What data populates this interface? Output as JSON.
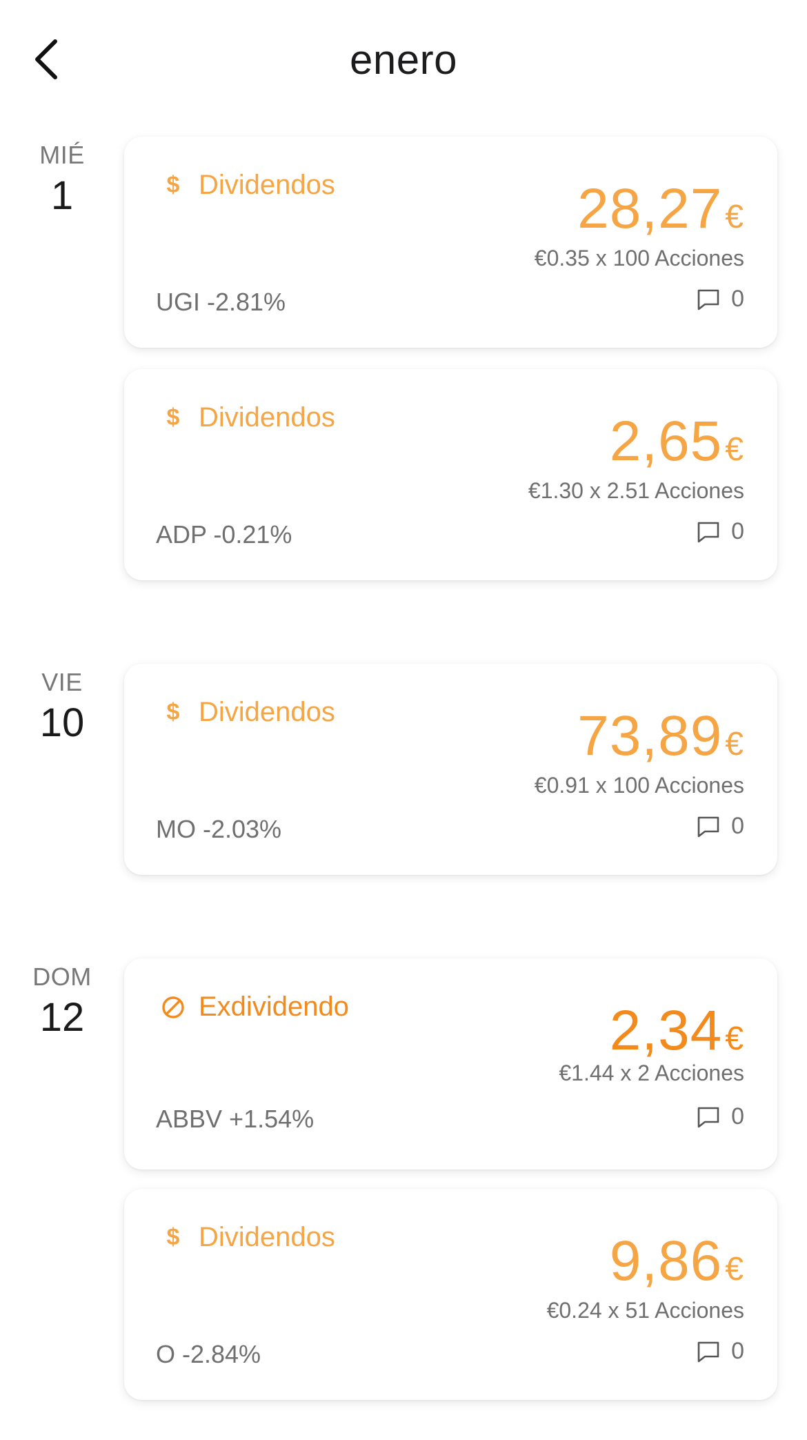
{
  "header": {
    "title": "enero"
  },
  "colors": {
    "dividend": "#f5a544",
    "exdividend": "#f28a1c",
    "muted": "#6f6f6f"
  },
  "days": [
    {
      "name": "MIÉ",
      "number": "1",
      "cards": [
        {
          "type": "Dividendos",
          "icon": "dollar-icon",
          "amount": "28,27",
          "currency": "€",
          "detail": "€0.35 x 100 Acciones",
          "ticker": "UGI -2.81%",
          "comments": "0"
        },
        {
          "type": "Dividendos",
          "icon": "dollar-icon",
          "amount": "2,65",
          "currency": "€",
          "detail": "€1.30 x 2.51 Acciones",
          "ticker": "ADP -0.21%",
          "comments": "0"
        }
      ]
    },
    {
      "name": "VIE",
      "number": "10",
      "cards": [
        {
          "type": "Dividendos",
          "icon": "dollar-icon",
          "amount": "73,89",
          "currency": "€",
          "detail": "€0.91 x 100 Acciones",
          "ticker": "MO -2.03%",
          "comments": "0"
        }
      ]
    },
    {
      "name": "DOM",
      "number": "12",
      "cards": [
        {
          "type": "Exdividendo",
          "icon": "prohibited-icon",
          "amount": "2,34",
          "currency": "€",
          "detail": "€1.44 x 2 Acciones",
          "ticker": "ABBV +1.54%",
          "comments": "0"
        },
        {
          "type": "Dividendos",
          "icon": "dollar-icon",
          "amount": "9,86",
          "currency": "€",
          "detail": "€0.24 x 51 Acciones",
          "ticker": "O -2.84%",
          "comments": "0"
        }
      ]
    }
  ]
}
